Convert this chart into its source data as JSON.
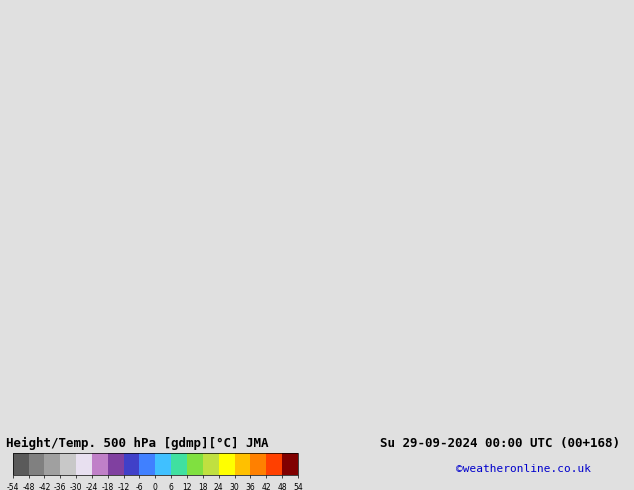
{
  "title_left": "Height/Temp. 500 hPa [gdmp][°C] JMA",
  "title_right": "Su 29-09-2024 00:00 UTC (00+168)",
  "credit": "©weatheronline.co.uk",
  "colorbar_ticks": [
    -54,
    -48,
    -42,
    -36,
    -30,
    -24,
    -18,
    -12,
    -6,
    0,
    6,
    12,
    18,
    24,
    30,
    36,
    42,
    48,
    54
  ],
  "colorbar_colors": [
    "#5a5a5a",
    "#808080",
    "#a0a0a0",
    "#c8c8c8",
    "#e8e0f0",
    "#c080c8",
    "#8040a0",
    "#4040c8",
    "#4080ff",
    "#40c0ff",
    "#40e0a0",
    "#80e040",
    "#c0e040",
    "#ffff00",
    "#ffc000",
    "#ff8000",
    "#ff4000",
    "#c00000",
    "#800000"
  ],
  "map_bg_color": "#e8e8e8",
  "land_color": "#c8f0a0",
  "border_color": "#808080",
  "sea_color": "#dcdcdc",
  "fig_width": 6.34,
  "fig_height": 4.9,
  "dpi": 100
}
